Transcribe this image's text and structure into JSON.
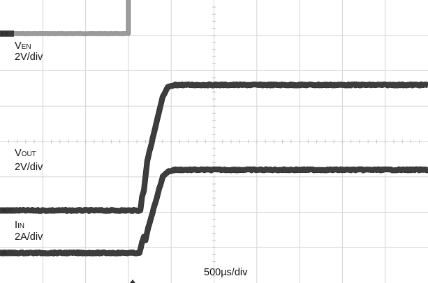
{
  "chart_data": {
    "type": "line",
    "title": "",
    "x_unit": "µs",
    "time_scale_label": "500µs/div",
    "time_per_div_us": 500,
    "x_range_us": [
      0,
      5000
    ],
    "grid": true,
    "divisions": {
      "horizontal": 10,
      "vertical": 8
    },
    "series": [
      {
        "name": "V",
        "name_sub": "EN",
        "scale_label": "2V/div",
        "marker": "EN",
        "color": "#9b9b9b",
        "outline": "#555555",
        "width": 5,
        "noise": 0.3,
        "baseline_div": 7.05,
        "points": [
          [
            0,
            0
          ],
          [
            1500,
            0
          ],
          [
            1500,
            6.45
          ],
          [
            5000,
            6.45
          ]
        ]
      },
      {
        "name": "V",
        "name_sub": "OUT",
        "scale_label": "2V/div",
        "marker": "OUT",
        "color": "#3d3d3d",
        "outline": "#1f1f1f",
        "width": 7,
        "noise": 0.8,
        "baseline_div": 2.05,
        "points": [
          [
            0,
            0
          ],
          [
            1640,
            0
          ],
          [
            1660,
            0.4
          ],
          [
            1680,
            0.55
          ],
          [
            1720,
            1.4
          ],
          [
            1900,
            3.2
          ],
          [
            1960,
            3.48
          ],
          [
            2050,
            3.55
          ],
          [
            5000,
            3.55
          ]
        ]
      },
      {
        "name": "I",
        "name_sub": "IN",
        "scale_label": "2A/div",
        "marker": "IN",
        "color": "#3d3d3d",
        "outline": "#1f1f1f",
        "width": 7,
        "noise": 0.8,
        "baseline_div": 0.85,
        "points": [
          [
            0,
            0
          ],
          [
            1630,
            0
          ],
          [
            1660,
            0.3
          ],
          [
            1680,
            0.45
          ],
          [
            1700,
            0.35
          ],
          [
            1730,
            0.7
          ],
          [
            1900,
            2.15
          ],
          [
            1960,
            2.3
          ],
          [
            2050,
            2.35
          ],
          [
            5000,
            2.35
          ]
        ]
      }
    ]
  }
}
